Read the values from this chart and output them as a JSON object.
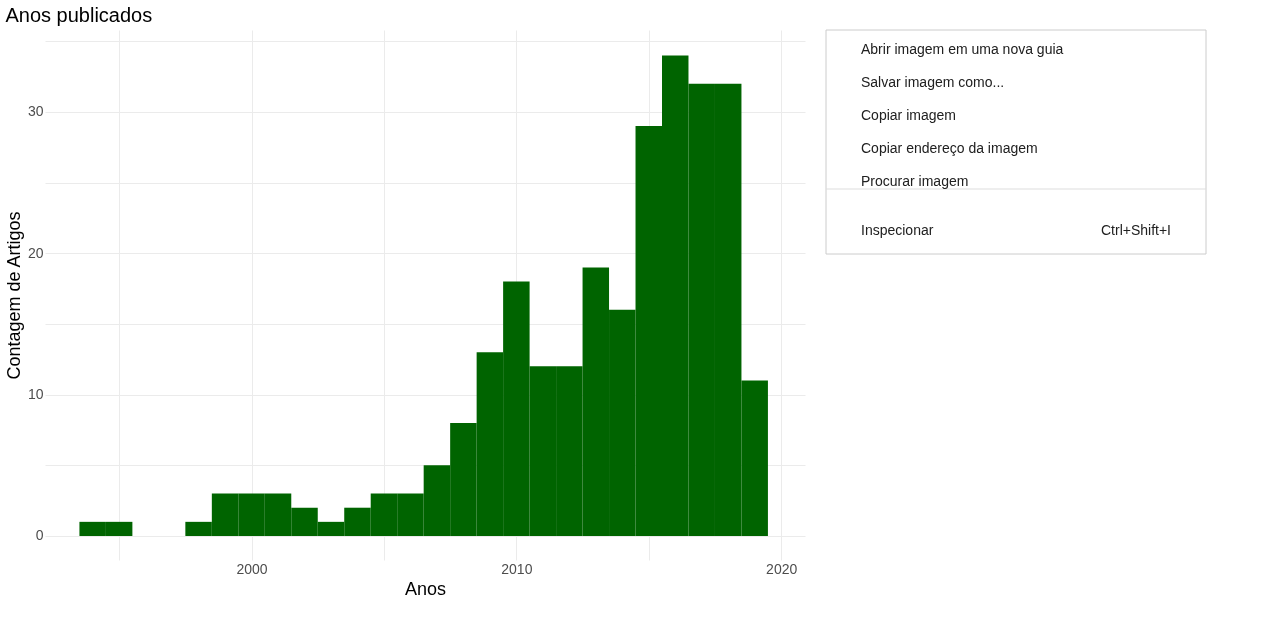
{
  "chart_data": {
    "type": "histogram",
    "title": "Anos publicados",
    "xlabel": "Anos",
    "ylabel": "Contagem de Artigos",
    "bins": [
      1993.5,
      1994.5,
      1995.5,
      1996.5,
      1997.5,
      1998.5,
      1999.5,
      2000.5,
      2001.5,
      2002.5,
      2003.5,
      2004.5,
      2005.5,
      2006.5,
      2007.5,
      2008.5,
      2009.5,
      2010.5,
      2011.5,
      2012.5,
      2013.5,
      2014.5,
      2015.5,
      2016.5,
      2017.5,
      2018.5,
      2019.5
    ],
    "values": [
      1,
      1,
      0,
      0,
      1,
      3,
      3,
      3,
      2,
      1,
      2,
      3,
      3,
      5,
      8,
      13,
      18,
      12,
      12,
      19,
      16,
      29,
      34,
      32,
      32,
      11
    ],
    "color": "#006400",
    "xlim": [
      1992.2,
      2020.9
    ],
    "xticks": [
      {
        "value": 1995,
        "label": null
      },
      2000,
      {
        "value": 2005,
        "label": null
      },
      2010,
      {
        "value": 2015,
        "label": null
      },
      2020
    ],
    "ylim": [
      -1.7,
      35.8
    ],
    "yticks": [
      0,
      {
        "value": 5,
        "label": null
      },
      10,
      {
        "value": 15,
        "label": null
      },
      20,
      {
        "value": 25,
        "label": null
      },
      30,
      {
        "value": 35,
        "label": null
      }
    ],
    "grid": true,
    "annotations": [
      "Abrir imagem em uma nova guia",
      "Salvar imagem como...",
      "Copiar imagem",
      "Copiar endereço da imagem",
      "Procurar imagem",
      "Inspecionar",
      "Ctrl+Shift+I"
    ]
  }
}
